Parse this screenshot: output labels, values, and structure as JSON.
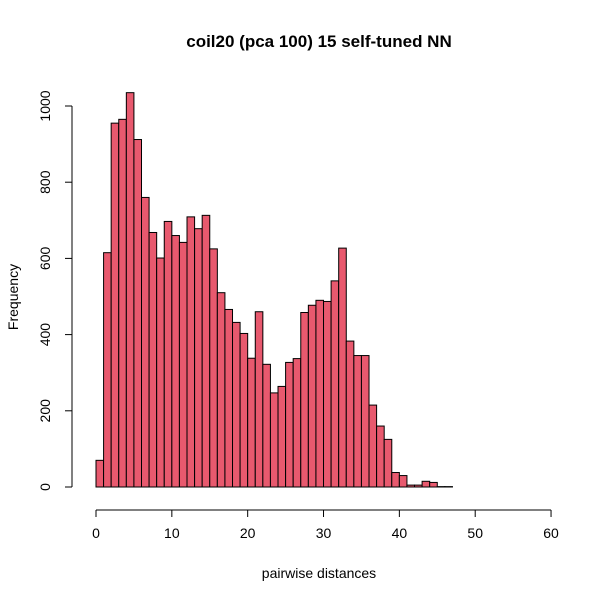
{
  "chart_data": {
    "type": "bar",
    "title": "coil20 (pca 100) 15 self-tuned NN",
    "xlabel": "pairwise distances",
    "ylabel": "Frequency",
    "bin_width": 1,
    "x_range": [
      0,
      59
    ],
    "xlim": [
      0,
      60
    ],
    "ylim": [
      0,
      1000
    ],
    "x_ticks": [
      0,
      10,
      20,
      30,
      40,
      50,
      60
    ],
    "y_ticks": [
      0,
      200,
      400,
      600,
      800,
      1000
    ],
    "bar_color": "#E8596E",
    "bin_starts": [
      0,
      1,
      2,
      3,
      4,
      5,
      6,
      7,
      8,
      9,
      10,
      11,
      12,
      13,
      14,
      15,
      16,
      17,
      18,
      19,
      20,
      21,
      22,
      23,
      24,
      25,
      26,
      27,
      28,
      29,
      30,
      31,
      32,
      33,
      34,
      35,
      36,
      37,
      38,
      39,
      40,
      41,
      42,
      43,
      44,
      45,
      46,
      47,
      48,
      49,
      50,
      51,
      52,
      53,
      54,
      55,
      56,
      57,
      58
    ],
    "values": [
      70,
      615,
      955,
      965,
      1035,
      912,
      760,
      668,
      601,
      697,
      660,
      642,
      709,
      678,
      713,
      625,
      510,
      466,
      432,
      403,
      338,
      460,
      322,
      247,
      264,
      327,
      337,
      458,
      477,
      490,
      487,
      541,
      627,
      383,
      345,
      345,
      215,
      160,
      125,
      38,
      30,
      5,
      5,
      15,
      12,
      1,
      1,
      0,
      0,
      0,
      0,
      0,
      0,
      0,
      0,
      0,
      0,
      0,
      0
    ]
  }
}
